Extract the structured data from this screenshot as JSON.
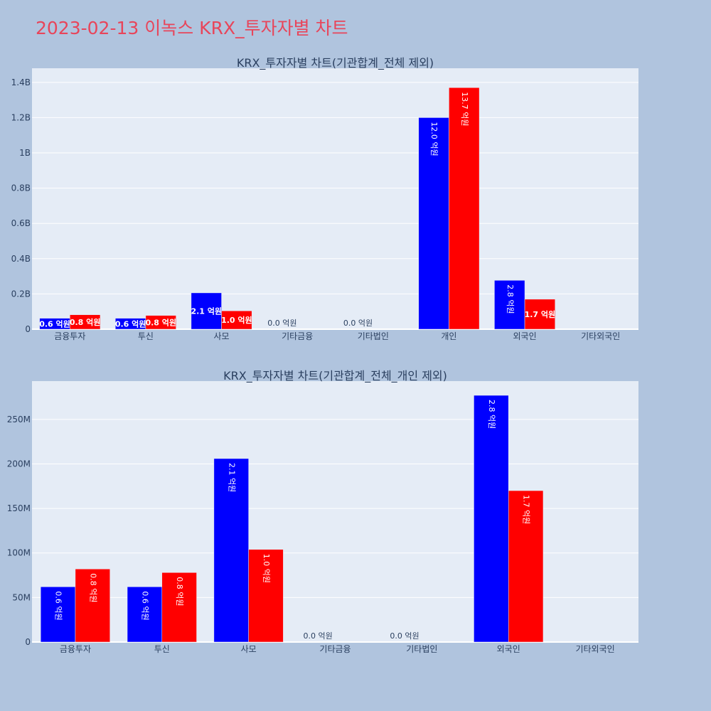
{
  "title": "2023-02-13 이녹스 KRX_투자자별 차트",
  "colors": {
    "buy": "#0000ff",
    "sell": "#ff0000",
    "plot_bg": "#e5ecf6",
    "paper_bg": "#b0c4de",
    "title": "#e8455a"
  },
  "chart_data": [
    {
      "type": "bar",
      "title": "KRX_투자자별 차트(기관합계_전체 제외)",
      "categories": [
        "금융투자",
        "투신",
        "사모",
        "기타금융",
        "기타법인",
        "개인",
        "외국인",
        "기타외국인"
      ],
      "ylim": [
        0,
        1480000000
      ],
      "yticks": [
        0,
        200000000,
        400000000,
        600000000,
        800000000,
        1000000000,
        1200000000,
        1400000000
      ],
      "ytick_labels": [
        "0",
        "0.2B",
        "0.4B",
        "0.6B",
        "0.8B",
        "1B",
        "1.2B",
        "1.4B"
      ],
      "series": [
        {
          "values": [
            62000000,
            62000000,
            206000000,
            0,
            0,
            1200000000,
            277000000,
            0
          ],
          "labels": [
            "0.6 억원",
            "0.6 억원",
            "2.1 억원",
            "0.0 억원",
            "0.0 억원",
            "12.0 억원",
            "2.8 억원",
            ""
          ]
        },
        {
          "values": [
            82000000,
            78000000,
            104000000,
            0,
            0,
            1370000000,
            170000000,
            0
          ],
          "labels": [
            "0.8 억원",
            "0.8 억원",
            "1.0 억원",
            "",
            "",
            "13.7 억원",
            "1.7 억원",
            ""
          ]
        }
      ]
    },
    {
      "type": "bar",
      "title": "KRX_투자자별 차트(기관합계_전체_개인 제외)",
      "categories": [
        "금융투자",
        "투신",
        "사모",
        "기타금융",
        "기타법인",
        "외국인",
        "기타외국인"
      ],
      "ylim": [
        0,
        293000000
      ],
      "yticks": [
        0,
        50000000,
        100000000,
        150000000,
        200000000,
        250000000
      ],
      "ytick_labels": [
        "0",
        "50M",
        "100M",
        "150M",
        "200M",
        "250M"
      ],
      "series": [
        {
          "values": [
            62000000,
            62000000,
            206000000,
            0,
            0,
            277000000,
            0
          ],
          "labels": [
            "0.6 억원",
            "0.6 억원",
            "2.1 억원",
            "0.0 억원",
            "0.0 억원",
            "2.8 억원",
            ""
          ]
        },
        {
          "values": [
            82000000,
            78000000,
            104000000,
            0,
            0,
            170000000,
            0
          ],
          "labels": [
            "0.8 억원",
            "0.8 억원",
            "1.0 억원",
            "",
            "",
            "1.7 억원",
            ""
          ]
        }
      ]
    }
  ]
}
